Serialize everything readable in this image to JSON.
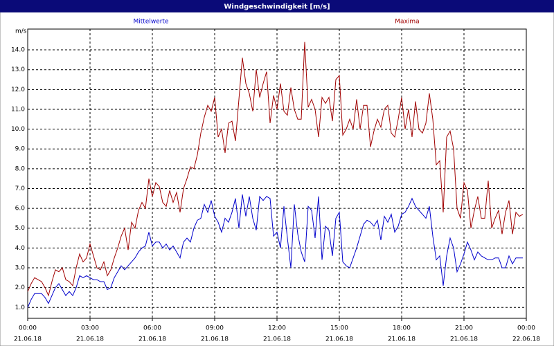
{
  "chart_data": {
    "type": "line",
    "title": "Windgeschwindigkeit [m/s]",
    "y_label": "m/s",
    "x": [
      0,
      10,
      20,
      30,
      40,
      50,
      60,
      70,
      80,
      90,
      100,
      110,
      120,
      130,
      140,
      150,
      160,
      170,
      180,
      190,
      200,
      210,
      220,
      230,
      240,
      250,
      260,
      270,
      280,
      290,
      300,
      310,
      320,
      330,
      340,
      350,
      360,
      370,
      380,
      390,
      400,
      410,
      420,
      430,
      440,
      450,
      460,
      470,
      480,
      490,
      500,
      510,
      520,
      530,
      540,
      550,
      560,
      570,
      580,
      590,
      600,
      610,
      620,
      630,
      640,
      650,
      660,
      670,
      680,
      690,
      700,
      710,
      720,
      730,
      740,
      750,
      760,
      770,
      780,
      790,
      800,
      810,
      820,
      830,
      840,
      850,
      860,
      870,
      880,
      890,
      900,
      910,
      920,
      930,
      940,
      950,
      960,
      970,
      980,
      990,
      1000,
      1010,
      1020,
      1030,
      1040,
      1050,
      1060,
      1070,
      1080,
      1090,
      1100,
      1110,
      1120,
      1130,
      1140,
      1150,
      1160,
      1170,
      1180,
      1190,
      1200,
      1210,
      1220,
      1230,
      1240,
      1250,
      1260,
      1270,
      1280,
      1290,
      1300,
      1310,
      1320,
      1330,
      1340,
      1350,
      1360,
      1370,
      1380,
      1390,
      1400,
      1410,
      1420,
      1430
    ],
    "series": [
      {
        "name": "Mittelwerte",
        "color": "#0000cc",
        "values": [
          1.0,
          1.4,
          1.7,
          1.7,
          1.7,
          1.5,
          1.2,
          1.6,
          2.0,
          2.2,
          1.9,
          1.6,
          1.8,
          1.6,
          2.0,
          2.6,
          2.5,
          2.6,
          2.5,
          2.4,
          2.4,
          2.3,
          2.3,
          1.9,
          2.0,
          2.5,
          2.8,
          3.1,
          2.9,
          3.1,
          3.3,
          3.5,
          3.8,
          4.0,
          4.1,
          4.8,
          4.1,
          4.3,
          4.3,
          4.0,
          4.2,
          3.9,
          4.1,
          3.8,
          3.5,
          4.3,
          4.5,
          4.3,
          5.0,
          5.4,
          5.5,
          6.2,
          5.8,
          6.4,
          5.6,
          5.3,
          4.8,
          5.5,
          5.3,
          5.8,
          6.5,
          5.0,
          6.7,
          5.6,
          6.6,
          5.5,
          4.9,
          6.6,
          6.4,
          6.6,
          6.5,
          4.6,
          4.8,
          4.0,
          6.1,
          4.5,
          3.0,
          6.2,
          4.7,
          3.8,
          3.3,
          6.1,
          5.9,
          4.5,
          6.6,
          3.4,
          5.1,
          4.9,
          3.6,
          5.5,
          5.8,
          3.3,
          3.1,
          3.0,
          3.5,
          4.0,
          4.6,
          5.2,
          5.4,
          5.3,
          5.1,
          5.4,
          4.4,
          5.6,
          5.3,
          5.7,
          4.8,
          5.1,
          5.7,
          5.8,
          6.1,
          6.5,
          6.1,
          5.9,
          5.7,
          5.5,
          6.1,
          4.6,
          3.4,
          3.6,
          2.1,
          3.6,
          4.5,
          4.0,
          2.8,
          3.2,
          3.7,
          4.3,
          3.9,
          3.4,
          3.8,
          3.6,
          3.5,
          3.4,
          3.4,
          3.5,
          3.5,
          3.0,
          3.0,
          3.6,
          3.2,
          3.5,
          3.5,
          3.5
        ]
      },
      {
        "name": "Maxima",
        "color": "#a00000",
        "values": [
          1.8,
          2.2,
          2.5,
          2.4,
          2.3,
          2.0,
          1.6,
          2.3,
          2.9,
          2.8,
          3.0,
          2.4,
          2.3,
          2.1,
          3.0,
          3.7,
          3.3,
          3.5,
          4.2,
          3.6,
          3.0,
          2.9,
          3.3,
          2.6,
          2.9,
          3.5,
          4.0,
          4.6,
          5.0,
          3.9,
          5.3,
          5.0,
          5.9,
          6.3,
          6.0,
          7.5,
          6.6,
          7.3,
          7.1,
          6.3,
          6.1,
          6.9,
          6.3,
          6.8,
          5.8,
          7.0,
          7.5,
          8.1,
          8.0,
          8.7,
          9.8,
          10.6,
          11.2,
          10.9,
          11.6,
          9.6,
          10.0,
          8.8,
          10.3,
          10.4,
          9.4,
          11.5,
          13.6,
          12.3,
          11.8,
          10.9,
          13.0,
          11.6,
          12.3,
          12.9,
          10.3,
          11.7,
          11.0,
          12.3,
          10.9,
          10.7,
          12.1,
          11.0,
          10.5,
          10.5,
          14.4,
          11.1,
          11.5,
          11.0,
          9.6,
          11.6,
          11.3,
          11.6,
          10.4,
          12.5,
          12.7,
          9.7,
          10.0,
          10.5,
          10.0,
          11.5,
          10.0,
          11.2,
          11.2,
          9.1,
          9.9,
          10.5,
          10.1,
          11.0,
          11.2,
          9.8,
          9.6,
          10.5,
          11.6,
          10.0,
          11.0,
          9.6,
          11.4,
          10.0,
          9.8,
          10.3,
          11.8,
          10.5,
          8.2,
          8.4,
          5.8,
          9.6,
          9.9,
          9.0,
          6.0,
          5.5,
          7.3,
          6.9,
          5.0,
          5.9,
          6.6,
          5.5,
          5.5,
          7.4,
          5.0,
          5.5,
          5.9,
          4.7,
          5.8,
          6.4,
          4.7,
          5.8,
          5.6,
          5.7
        ]
      }
    ],
    "xlim": [
      0,
      1440
    ],
    "xticks": [
      {
        "value": 0,
        "label": "00:00"
      },
      {
        "value": 180,
        "label": "03:00"
      },
      {
        "value": 360,
        "label": "06:00"
      },
      {
        "value": 540,
        "label": "09:00"
      },
      {
        "value": 720,
        "label": "12:00"
      },
      {
        "value": 900,
        "label": "15:00"
      },
      {
        "value": 1080,
        "label": "18:00"
      },
      {
        "value": 1260,
        "label": "21:00"
      },
      {
        "value": 1440,
        "label": "00:00"
      }
    ],
    "xtick_dates": [
      "21.06.18",
      "21.06.18",
      "21.06.18",
      "21.06.18",
      "21.06.18",
      "21.06.18",
      "21.06.18",
      "21.06.18",
      "22.06.18"
    ],
    "ylim": [
      0.45,
      15.05
    ],
    "yticks": [
      {
        "value": 1,
        "label": "1.0"
      },
      {
        "value": 2,
        "label": "2.0"
      },
      {
        "value": 3,
        "label": "3.0"
      },
      {
        "value": 4,
        "label": "4.0"
      },
      {
        "value": 5,
        "label": "5.0"
      },
      {
        "value": 6,
        "label": "6.0"
      },
      {
        "value": 7,
        "label": "7.0"
      },
      {
        "value": 8,
        "label": "8.0"
      },
      {
        "value": 9,
        "label": "9.0"
      },
      {
        "value": 10,
        "label": "10.0"
      },
      {
        "value": 11,
        "label": "11.0"
      },
      {
        "value": 12,
        "label": "12.0"
      },
      {
        "value": 13,
        "label": "13.0"
      },
      {
        "value": 14,
        "label": "14.0"
      }
    ],
    "grid": true
  }
}
